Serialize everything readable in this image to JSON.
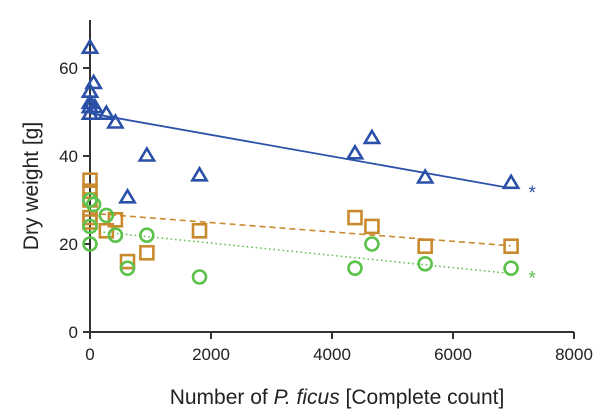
{
  "chart_data": {
    "type": "scatter",
    "xlabel_parts": [
      "Number of ",
      "P. ficus",
      " [Complete count]"
    ],
    "ylabel": "Dry weight [g]",
    "xlim": [
      0,
      8000
    ],
    "ylim": [
      0,
      70
    ],
    "x_ticks": [
      0,
      2000,
      4000,
      6000,
      8000
    ],
    "y_ticks": [
      0,
      20,
      40,
      60
    ],
    "grid": false,
    "legend": "none",
    "series": [
      {
        "marker": "triangle",
        "color": "#2b50a8",
        "line_style": "solid",
        "trend": [
          [
            0,
            49.7
          ],
          [
            6950,
            32.7
          ]
        ],
        "annotation": "*",
        "points": [
          [
            0,
            64.5
          ],
          [
            0,
            54.5
          ],
          [
            0,
            52
          ],
          [
            0,
            51
          ],
          [
            0,
            49.5
          ],
          [
            60,
            56.5
          ],
          [
            80,
            51
          ],
          [
            270,
            49.5
          ],
          [
            420,
            47.5
          ],
          [
            620,
            30.5
          ],
          [
            940,
            40
          ],
          [
            1810,
            35.5
          ],
          [
            4380,
            40.5
          ],
          [
            4660,
            44
          ],
          [
            5540,
            35
          ],
          [
            6960,
            33.8
          ]
        ]
      },
      {
        "marker": "square",
        "color": "#c98a2e",
        "line_style": "dashed",
        "trend": [
          [
            0,
            27
          ],
          [
            6950,
            19.6
          ]
        ],
        "annotation": "",
        "points": [
          [
            0,
            34.5
          ],
          [
            0,
            32
          ],
          [
            0,
            30
          ],
          [
            0,
            26
          ],
          [
            0,
            25
          ],
          [
            270,
            23
          ],
          [
            420,
            25.5
          ],
          [
            620,
            16
          ],
          [
            940,
            18
          ],
          [
            1810,
            23
          ],
          [
            4380,
            26
          ],
          [
            4660,
            24
          ],
          [
            5540,
            19.5
          ],
          [
            6960,
            19.5
          ]
        ]
      },
      {
        "marker": "circle",
        "color": "#5cc24b",
        "line_style": "dotted",
        "trend": [
          [
            0,
            23
          ],
          [
            6950,
            13.3
          ]
        ],
        "annotation": "*",
        "points": [
          [
            0,
            30
          ],
          [
            0,
            24
          ],
          [
            0,
            20
          ],
          [
            60,
            29
          ],
          [
            270,
            26.5
          ],
          [
            420,
            22
          ],
          [
            620,
            14.5
          ],
          [
            940,
            22
          ],
          [
            1810,
            12.5
          ],
          [
            4380,
            14.5
          ],
          [
            4660,
            20
          ],
          [
            5540,
            15.5
          ],
          [
            6960,
            14.5
          ]
        ]
      }
    ]
  }
}
